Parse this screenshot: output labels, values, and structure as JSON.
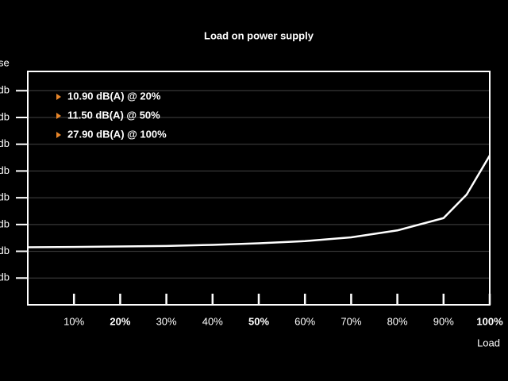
{
  "chart_data": {
    "type": "line",
    "title": "Load on power supply",
    "ylabel": "se",
    "xlabel": "Load",
    "annotations": [
      "10.90 dB(A) @ 20%",
      "11.50 dB(A) @ 50%",
      "27.90 dB(A) @ 100%"
    ],
    "annotation_marker_color": "#e8862a",
    "x": [
      0,
      10,
      20,
      30,
      40,
      50,
      60,
      70,
      80,
      90,
      95,
      100
    ],
    "series": [
      {
        "name": "Noise",
        "color": "#ffffff",
        "values": [
          10.75,
          10.8,
          10.9,
          11.0,
          11.2,
          11.5,
          11.9,
          12.6,
          13.9,
          16.2,
          20.6,
          27.9
        ]
      }
    ],
    "xlim": [
      0,
      100
    ],
    "xticks": [
      {
        "value": 10,
        "label": "10%"
      },
      {
        "value": 20,
        "label": "20%",
        "bold": true
      },
      {
        "value": 30,
        "label": "30%"
      },
      {
        "value": 40,
        "label": "40%"
      },
      {
        "value": 50,
        "label": "50%",
        "bold": true
      },
      {
        "value": 60,
        "label": "60%"
      },
      {
        "value": 70,
        "label": "70%"
      },
      {
        "value": 80,
        "label": "80%"
      },
      {
        "value": 90,
        "label": "90%"
      },
      {
        "value": 100,
        "label": "100%",
        "bold": true
      }
    ],
    "ylim": [
      0,
      43.6
    ],
    "yticks": [
      {
        "value": 5,
        "label": "db"
      },
      {
        "value": 10,
        "label": "db"
      },
      {
        "value": 15,
        "label": "db"
      },
      {
        "value": 20,
        "label": "db"
      },
      {
        "value": 25,
        "label": "db"
      },
      {
        "value": 30,
        "label": "db"
      },
      {
        "value": 35,
        "label": "db"
      },
      {
        "value": 40,
        "label": "db"
      }
    ],
    "grid": true
  }
}
